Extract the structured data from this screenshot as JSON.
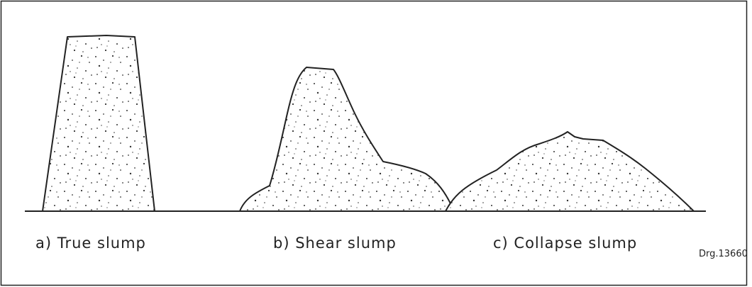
{
  "figures": [
    {
      "label": "a) True slump"
    },
    {
      "label": "b) Shear slump"
    },
    {
      "label": "c) Collapse slump"
    }
  ],
  "drawing_number": "Drg.13660"
}
